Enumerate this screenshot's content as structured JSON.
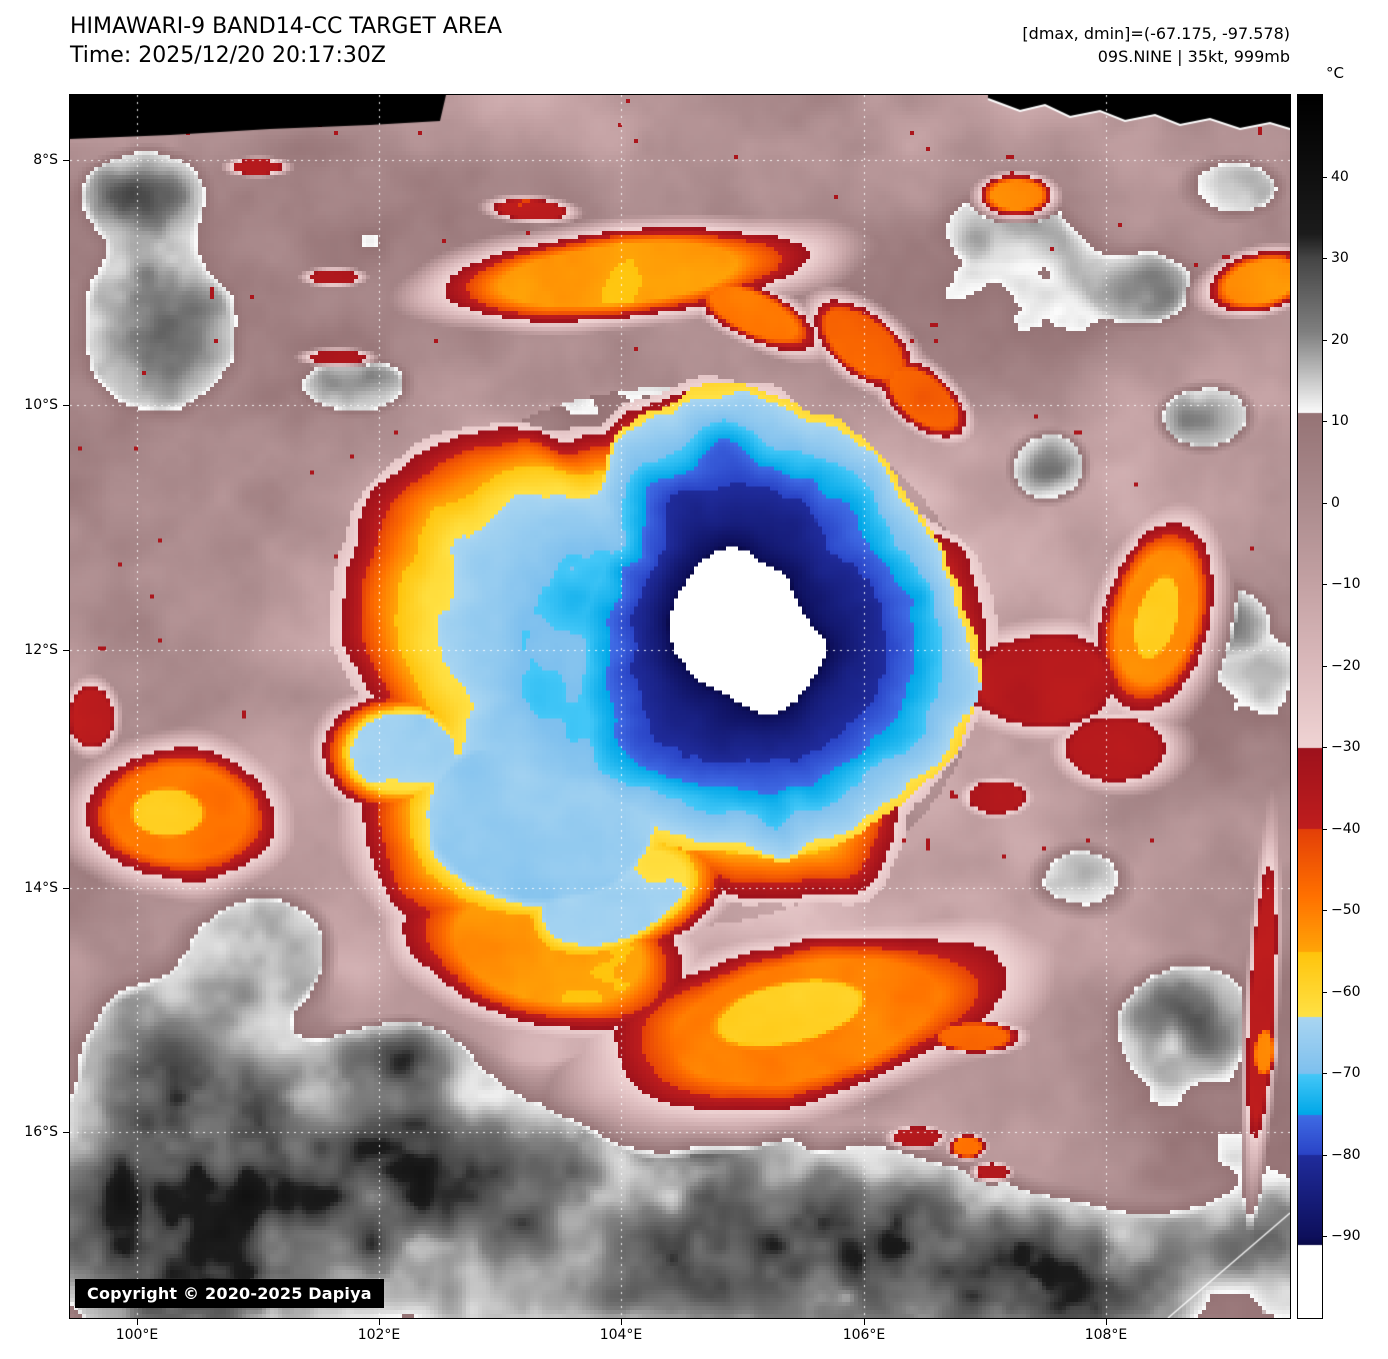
{
  "header": {
    "title": "HIMAWARI-9 BAND14-CC TARGET AREA",
    "time_label": "Time: 2025/12/20 20:17:30Z",
    "dmax_dmin": "[dmax, dmin]=(-67.175, -97.578)",
    "storm_info": "09S.NINE | 35kt, 999mb"
  },
  "colorbar": {
    "unit": "°C",
    "tick_labels": [
      "40",
      "30",
      "20",
      "10",
      "0",
      "−10",
      "−20",
      "−30",
      "−40",
      "−50",
      "−60",
      "−70",
      "−80",
      "−90"
    ]
  },
  "axes": {
    "lat_tick_labels": [
      "8°S",
      "10°S",
      "12°S",
      "14°S",
      "16°S"
    ],
    "lon_tick_labels": [
      "100°E",
      "102°E",
      "104°E",
      "106°E",
      "108°E"
    ]
  },
  "map": {
    "copyright": "Copyright © 2020-2025 Dapiya",
    "colors": {
      "swath_black": "#000000",
      "background_mauve": "#a98c8e",
      "pink_cold_band": "#e4c8c8",
      "cloud_gray": "#9a9a9a",
      "ring_dark_red": "#b01e1e",
      "ring_orange": "#ff7000",
      "ring_yellow": "#ffc40c",
      "ring_light_blue": "#a8d6f2",
      "ring_cyan": "#28b4e8",
      "ring_blue": "#2a44c4",
      "core_navy": "#0e105c",
      "core_white": "#ffffff",
      "graticule_white": "#ffffff"
    }
  }
}
